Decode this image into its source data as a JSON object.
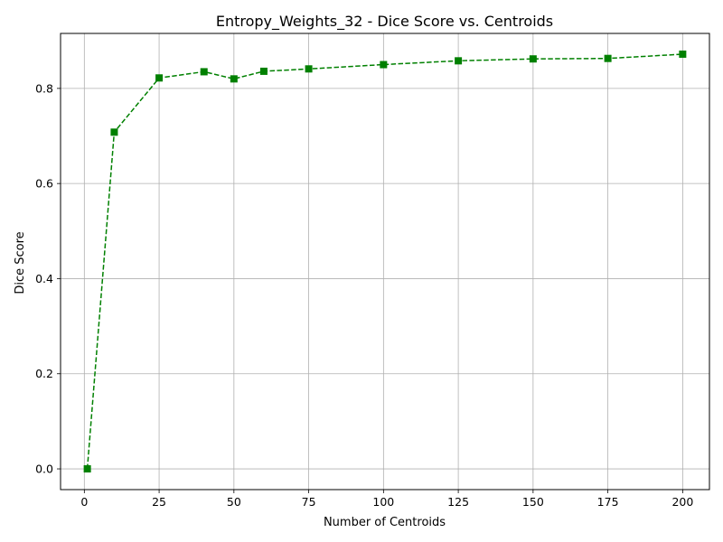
{
  "chart_data": {
    "type": "line",
    "title": "Entropy_Weights_32 - Dice Score vs. Centroids",
    "xlabel": "Number of Centroids",
    "ylabel": "Dice Score",
    "xlim": [
      -7.95,
      208.95
    ],
    "ylim": [
      -0.0436,
      0.9156
    ],
    "x_ticks": [
      0,
      25,
      50,
      75,
      100,
      125,
      150,
      175,
      200
    ],
    "x_tick_labels": [
      "0",
      "25",
      "50",
      "75",
      "100",
      "125",
      "150",
      "175",
      "200"
    ],
    "y_ticks": [
      0.0,
      0.2,
      0.4,
      0.6,
      0.8
    ],
    "y_tick_labels": [
      "0.0",
      "0.2",
      "0.4",
      "0.6",
      "0.8"
    ],
    "grid": true,
    "series": [
      {
        "color": "#008000",
        "line_style": "dashed",
        "marker": "square",
        "x": [
          1,
          10,
          25,
          40,
          50,
          60,
          75,
          100,
          125,
          150,
          175,
          200
        ],
        "y": [
          0.0,
          0.708,
          0.822,
          0.835,
          0.82,
          0.836,
          0.841,
          0.85,
          0.858,
          0.862,
          0.863,
          0.872
        ]
      }
    ]
  }
}
